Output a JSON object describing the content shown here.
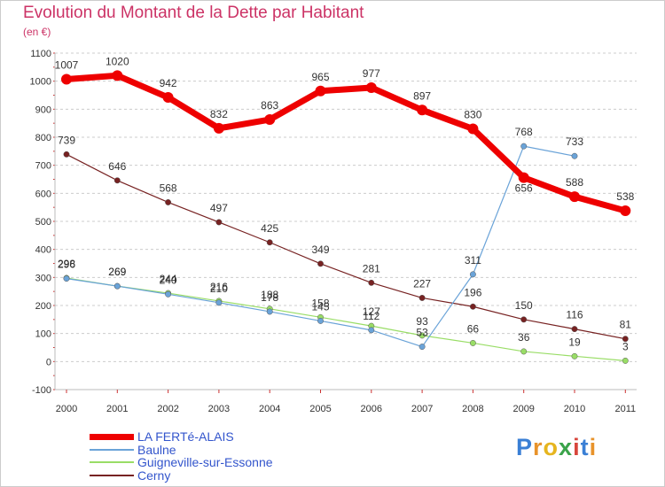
{
  "header": {
    "title": "Evolution du Montant de la Dette par Habitant",
    "unit": "(en €)"
  },
  "logo": {
    "text": "Proxiti",
    "colors": [
      "#3a7fd5",
      "#e8932b",
      "#e6b51f",
      "#3aa34a",
      "#d8463c",
      "#3a7fd5",
      "#e8932b"
    ]
  },
  "chart_data": {
    "type": "line",
    "title": "Evolution du Montant de la Dette par Habitant",
    "ylabel": "(en €)",
    "xlabel": "",
    "ylim": [
      -100,
      1100
    ],
    "yticks": [
      -100,
      0,
      100,
      200,
      300,
      400,
      500,
      600,
      700,
      800,
      900,
      1000,
      1100
    ],
    "x": [
      "2000",
      "2001",
      "2002",
      "2003",
      "2004",
      "2005",
      "2006",
      "2007",
      "2008",
      "2009",
      "2010",
      "2011"
    ],
    "grid": "horizontal dashed",
    "legend_position": "bottom-left",
    "series": [
      {
        "name": "LA FERTé-ALAIS",
        "color": "#ee0000",
        "values": [
          1007,
          1020,
          942,
          832,
          863,
          965,
          977,
          897,
          830,
          656,
          588,
          538
        ]
      },
      {
        "name": "Baulne",
        "color": "#6aa3d8",
        "values": [
          296,
          269,
          240,
          210,
          178,
          145,
          112,
          53,
          311,
          768,
          733,
          null
        ]
      },
      {
        "name": "Guigneville-sur-Essonne",
        "color": "#99dd66",
        "values": [
          298,
          269,
          244,
          216,
          188,
          158,
          127,
          93,
          66,
          36,
          19,
          3
        ]
      },
      {
        "name": "Cerny",
        "color": "#772222",
        "values": [
          739,
          646,
          568,
          497,
          425,
          349,
          281,
          227,
          196,
          150,
          116,
          81
        ]
      }
    ]
  }
}
